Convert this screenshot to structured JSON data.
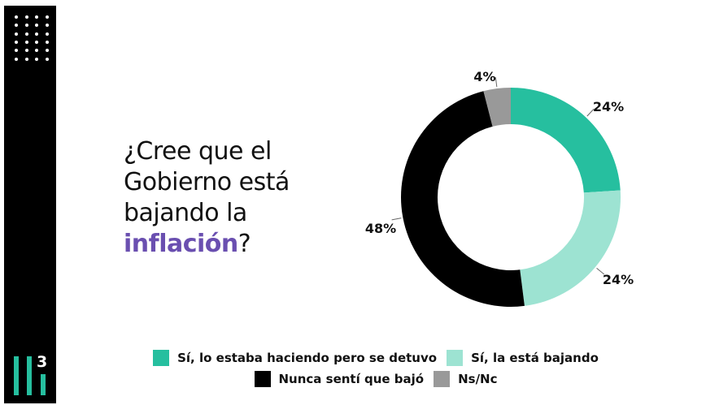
{
  "question": {
    "line1": "¿Cree que el",
    "line2": "Gobierno está",
    "line3": "bajando la",
    "highlight": "inflación",
    "suffix": "?"
  },
  "logo": {
    "text": "3"
  },
  "colors": {
    "accent": "#26bf9f",
    "highlight": "#6a4fb0"
  },
  "chart_data": {
    "type": "pie",
    "donut": true,
    "start": "top, clockwise",
    "slices": [
      {
        "name": "Sí, lo estaba haciendo pero se detuvo",
        "value": 24,
        "label": "24%",
        "color": "#26bf9f"
      },
      {
        "name": "Sí, la está bajando",
        "value": 24,
        "label": "24%",
        "color": "#9de3d2"
      },
      {
        "name": "Nunca sentí que bajó",
        "value": 48,
        "label": "48%",
        "color": "#000000"
      },
      {
        "name": "Ns/Nc",
        "value": 4,
        "label": "4%",
        "color": "#999999"
      }
    ],
    "legend_position": "bottom"
  }
}
